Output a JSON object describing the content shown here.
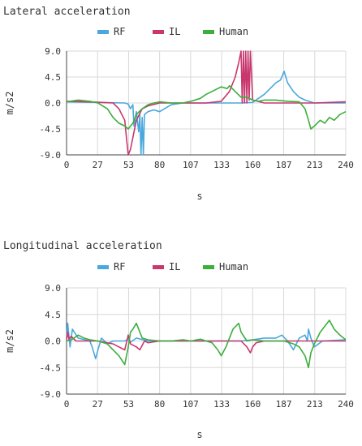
{
  "chart_data": [
    {
      "type": "line",
      "title": "Lateral acceleration",
      "xlabel": "s",
      "ylabel": "m/s2",
      "xlim": [
        0,
        240
      ],
      "ylim": [
        -9,
        9
      ],
      "x_ticks": [
        "0",
        "27",
        "53",
        "80",
        "107",
        "133",
        "160",
        "187",
        "213",
        "240"
      ],
      "y_ticks": [
        "9.0",
        "4.5",
        "0.0",
        "-4.5",
        "-9.0"
      ],
      "grid": true,
      "legend": "top",
      "series": [
        {
          "name": "RF",
          "color": "#4aa8dc",
          "x": [
            0,
            27,
            50,
            53,
            55,
            57,
            58,
            60,
            62,
            63,
            64,
            65,
            66,
            67,
            70,
            75,
            80,
            90,
            100,
            107,
            120,
            133,
            150,
            160,
            170,
            175,
            180,
            184,
            187,
            190,
            195,
            200,
            205,
            213,
            220,
            230,
            240
          ],
          "y": [
            0.2,
            0.1,
            0.0,
            -0.2,
            -1.0,
            -0.3,
            -4.0,
            -1.5,
            -5.0,
            -2.0,
            -9.0,
            -2.5,
            -9.0,
            -2.0,
            -1.5,
            -1.2,
            -1.5,
            -0.3,
            0.0,
            0.0,
            0.0,
            0.0,
            0.0,
            0.1,
            1.5,
            2.5,
            3.5,
            4.0,
            5.5,
            3.5,
            2.0,
            1.0,
            0.5,
            0.0,
            0.0,
            0.0,
            0.0
          ]
        },
        {
          "name": "IL",
          "color": "#c8386e",
          "x": [
            0,
            20,
            40,
            45,
            50,
            52,
            53,
            55,
            57,
            60,
            65,
            70,
            80,
            100,
            120,
            133,
            140,
            145,
            148,
            150,
            151,
            152,
            153,
            154,
            155,
            156,
            157,
            158,
            160,
            170,
            190,
            213,
            240
          ],
          "y": [
            0.3,
            0.2,
            0.0,
            -1.0,
            -3.0,
            -7.0,
            -9.0,
            -8.0,
            -6.0,
            -3.0,
            -1.0,
            -0.5,
            0.0,
            0.0,
            0.0,
            0.3,
            2.0,
            4.5,
            7.0,
            9.0,
            0.0,
            9.0,
            0.0,
            9.0,
            0.0,
            9.0,
            0.5,
            9.0,
            0.5,
            0.0,
            0.0,
            0.0,
            0.2
          ]
        },
        {
          "name": "Human",
          "color": "#3cae3c",
          "x": [
            0,
            10,
            20,
            27,
            35,
            40,
            45,
            50,
            53,
            57,
            60,
            65,
            70,
            75,
            80,
            90,
            100,
            107,
            115,
            120,
            125,
            130,
            133,
            138,
            140,
            145,
            150,
            155,
            160,
            165,
            170,
            180,
            190,
            200,
            205,
            208,
            210,
            213,
            218,
            222,
            226,
            230,
            235,
            240
          ],
          "y": [
            0.2,
            0.5,
            0.3,
            0.0,
            -1.0,
            -2.5,
            -3.5,
            -4.0,
            -4.5,
            -3.5,
            -2.0,
            -1.0,
            -0.3,
            0.0,
            0.2,
            0.0,
            0.0,
            0.3,
            0.8,
            1.5,
            2.0,
            2.5,
            2.8,
            2.5,
            3.0,
            2.0,
            1.0,
            1.0,
            0.5,
            0.3,
            0.5,
            0.5,
            0.3,
            0.2,
            -1.0,
            -3.0,
            -4.5,
            -4.0,
            -3.0,
            -3.5,
            -2.5,
            -3.0,
            -2.0,
            -1.5
          ]
        }
      ]
    },
    {
      "type": "line",
      "title": "Longitudinal acceleration",
      "xlabel": "s",
      "ylabel": "m/s2",
      "xlim": [
        0,
        240
      ],
      "ylim": [
        -9,
        9
      ],
      "x_ticks": [
        "0",
        "27",
        "53",
        "80",
        "107",
        "133",
        "160",
        "187",
        "213",
        "240"
      ],
      "y_ticks": [
        "9.0",
        "4.5",
        "0.0",
        "-4.5",
        "-9.0"
      ],
      "grid": true,
      "legend": "top",
      "series": [
        {
          "name": "RF",
          "color": "#4aa8dc",
          "x": [
            0,
            1,
            3,
            5,
            10,
            20,
            22,
            25,
            27,
            30,
            35,
            40,
            50,
            53,
            55,
            60,
            70,
            80,
            100,
            133,
            150,
            160,
            170,
            180,
            185,
            190,
            195,
            200,
            205,
            207,
            208,
            210,
            213,
            220,
            240
          ],
          "y": [
            0.5,
            3.0,
            -1.0,
            2.0,
            0.5,
            0.0,
            -1.0,
            -3.0,
            -1.5,
            0.5,
            -0.5,
            0.0,
            0.0,
            0.3,
            -0.2,
            0.5,
            0.0,
            0.0,
            0.0,
            0.0,
            0.0,
            0.2,
            0.5,
            0.5,
            1.0,
            0.0,
            -1.5,
            0.5,
            1.0,
            0.0,
            2.0,
            0.5,
            -1.0,
            0.0,
            0.2
          ]
        },
        {
          "name": "IL",
          "color": "#c8386e",
          "x": [
            0,
            1,
            2,
            4,
            8,
            15,
            27,
            40,
            45,
            50,
            53,
            55,
            60,
            63,
            67,
            70,
            80,
            100,
            133,
            140,
            150,
            155,
            158,
            160,
            163,
            170,
            190,
            213,
            240
          ],
          "y": [
            0.2,
            1.5,
            0.3,
            0.8,
            0.0,
            0.0,
            0.0,
            -0.5,
            -1.0,
            -1.5,
            1.0,
            -0.5,
            -1.0,
            -1.5,
            0.0,
            -0.3,
            0.0,
            0.0,
            0.0,
            0.0,
            0.0,
            -1.0,
            -2.0,
            -1.0,
            -0.3,
            0.0,
            0.0,
            0.0,
            0.0
          ]
        },
        {
          "name": "Human",
          "color": "#3cae3c",
          "x": [
            0,
            5,
            10,
            15,
            20,
            27,
            35,
            40,
            45,
            50,
            53,
            55,
            57,
            60,
            65,
            70,
            80,
            90,
            100,
            107,
            115,
            120,
            125,
            130,
            133,
            137,
            140,
            143,
            148,
            150,
            155,
            160,
            170,
            180,
            187,
            195,
            200,
            205,
            208,
            210,
            213,
            218,
            222,
            226,
            230,
            235,
            240
          ],
          "y": [
            0.0,
            0.3,
            1.0,
            0.5,
            0.2,
            0.0,
            -0.5,
            -1.5,
            -2.5,
            -4.0,
            -1.0,
            1.5,
            2.0,
            3.0,
            0.5,
            0.2,
            0.0,
            0.0,
            0.2,
            0.0,
            0.3,
            0.0,
            -0.3,
            -1.5,
            -2.5,
            -1.0,
            0.5,
            2.0,
            3.0,
            1.5,
            0.0,
            0.2,
            0.0,
            0.0,
            0.0,
            -0.5,
            -1.0,
            -2.5,
            -4.5,
            -2.0,
            -0.5,
            1.5,
            2.5,
            3.5,
            2.0,
            1.0,
            0.2
          ]
        }
      ]
    }
  ]
}
